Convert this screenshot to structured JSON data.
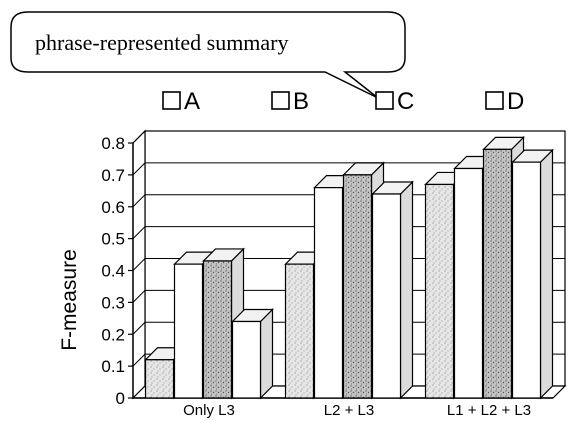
{
  "callout": {
    "text": "phrase-represented summary"
  },
  "chart_data": {
    "type": "bar",
    "title": "",
    "xlabel": "",
    "ylabel": "F-measure",
    "ylim": [
      0,
      0.8
    ],
    "yticks": [
      "0",
      "0.1",
      "0.2",
      "0.3",
      "0.4",
      "0.5",
      "0.6",
      "0.7",
      "0.8"
    ],
    "grid": true,
    "legend_position": "top",
    "categories": [
      "Only L3",
      "L2 + L3",
      "L1 + L2 + L3"
    ],
    "series": [
      {
        "name": "A",
        "values": [
          0.12,
          0.42,
          0.67
        ],
        "fill": "#d9d9d9"
      },
      {
        "name": "B",
        "values": [
          0.42,
          0.66,
          0.72
        ],
        "fill": "#ffffff"
      },
      {
        "name": "C",
        "values": [
          0.43,
          0.7,
          0.78
        ],
        "fill": "#aaaaaa"
      },
      {
        "name": "D",
        "values": [
          0.24,
          0.64,
          0.74
        ],
        "fill": "#ffffff"
      }
    ]
  }
}
